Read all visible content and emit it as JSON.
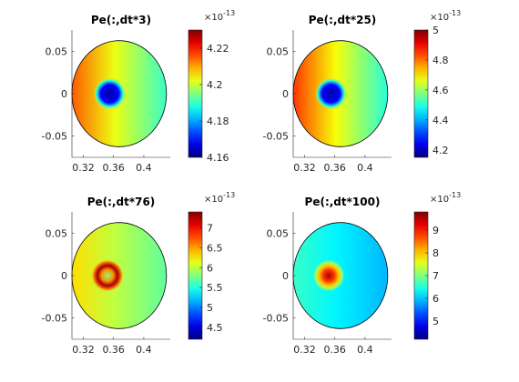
{
  "chart_data": [
    {
      "type": "heatmap",
      "title": "Pe(:,dt*3)",
      "xlabel": "",
      "ylabel": "",
      "x_ticks": [
        0.32,
        0.36,
        0.4
      ],
      "y_ticks": [
        0.05,
        0,
        -0.05
      ],
      "x_tick_labels": [
        "0.32",
        "0.36",
        "0.4"
      ],
      "y_tick_labels": [
        "0.05",
        "0",
        "-0.05"
      ],
      "xlim": [
        0.305,
        0.435
      ],
      "ylim": [
        -0.075,
        0.075
      ],
      "colormap": "jet",
      "colorbar": {
        "range": [
          4.16,
          4.23
        ],
        "ticks": [
          4.16,
          4.18,
          4.2,
          4.22
        ],
        "tick_labels": [
          "4.16",
          "4.18",
          "4.2",
          "4.22"
        ],
        "exponent_base": "×10",
        "exponent_power": "-13"
      },
      "field": {
        "disk_center": [
          0.3675,
          0.0
        ],
        "disk_radius": 0.0625,
        "spot_center": [
          0.355,
          0.0
        ],
        "spot_radius": 0.016,
        "spot_value": 4.162,
        "background_left": 4.215,
        "background_right": 4.19,
        "ring": false
      }
    },
    {
      "type": "heatmap",
      "title": "Pe(:,dt*25)",
      "xlabel": "",
      "ylabel": "",
      "x_ticks": [
        0.32,
        0.36,
        0.4
      ],
      "y_ticks": [
        0.05,
        0,
        -0.05
      ],
      "x_tick_labels": [
        "0.32",
        "0.36",
        "0.4"
      ],
      "y_tick_labels": [
        "0.05",
        "0",
        "-0.05"
      ],
      "xlim": [
        0.305,
        0.435
      ],
      "ylim": [
        -0.075,
        0.075
      ],
      "colormap": "jet",
      "colorbar": {
        "range": [
          4.15,
          5.0
        ],
        "ticks": [
          4.2,
          4.4,
          4.6,
          4.8,
          5
        ],
        "tick_labels": [
          "4.2",
          "4.4",
          "4.6",
          "4.8",
          "5"
        ],
        "exponent_base": "×10",
        "exponent_power": "-13"
      },
      "field": {
        "disk_center": [
          0.3675,
          0.0
        ],
        "disk_radius": 0.0625,
        "spot_center": [
          0.355,
          0.0
        ],
        "spot_radius": 0.016,
        "spot_value": 4.18,
        "background_left": 4.85,
        "background_right": 4.5,
        "ring": false
      }
    },
    {
      "type": "heatmap",
      "title": "Pe(:,dt*76)",
      "xlabel": "",
      "ylabel": "",
      "x_ticks": [
        0.32,
        0.36,
        0.4
      ],
      "y_ticks": [
        0.05,
        0,
        -0.05
      ],
      "x_tick_labels": [
        "0.32",
        "0.36",
        "0.4"
      ],
      "y_tick_labels": [
        "0.05",
        "0",
        "-0.05"
      ],
      "xlim": [
        0.305,
        0.435
      ],
      "ylim": [
        -0.075,
        0.075
      ],
      "colormap": "jet",
      "colorbar": {
        "range": [
          4.2,
          7.4
        ],
        "ticks": [
          4.5,
          5,
          5.5,
          6,
          6.5,
          7
        ],
        "tick_labels": [
          "4.5",
          "5",
          "5.5",
          "6",
          "6.5",
          "7"
        ],
        "exponent_base": "×10",
        "exponent_power": "-13"
      },
      "field": {
        "disk_center": [
          0.3675,
          0.0
        ],
        "disk_radius": 0.0625,
        "spot_center": [
          0.352,
          0.0
        ],
        "spot_radius": 0.011,
        "spot_value": 5.8,
        "ring_value": 7.3,
        "background_left": 6.3,
        "background_right": 5.7,
        "ring": true
      }
    },
    {
      "type": "heatmap",
      "title": "Pe(:,dt*100)",
      "xlabel": "",
      "ylabel": "",
      "x_ticks": [
        0.32,
        0.36,
        0.4
      ],
      "y_ticks": [
        0.05,
        0,
        -0.05
      ],
      "x_tick_labels": [
        "0.32",
        "0.36",
        "0.4"
      ],
      "y_tick_labels": [
        "0.05",
        "0",
        "-0.05"
      ],
      "xlim": [
        0.305,
        0.435
      ],
      "ylim": [
        -0.075,
        0.075
      ],
      "colormap": "jet",
      "colorbar": {
        "range": [
          4.2,
          9.8
        ],
        "ticks": [
          5,
          6,
          7,
          8,
          9
        ],
        "tick_labels": [
          "5",
          "6",
          "7",
          "8",
          "9"
        ],
        "exponent_base": "×10",
        "exponent_power": "-13"
      },
      "field": {
        "disk_center": [
          0.3675,
          0.0
        ],
        "disk_radius": 0.0625,
        "spot_center": [
          0.352,
          0.0
        ],
        "spot_radius": 0.011,
        "spot_value": 9.6,
        "ring_value": 8.0,
        "background_left": 6.6,
        "background_right": 5.9,
        "ring": true
      }
    }
  ]
}
